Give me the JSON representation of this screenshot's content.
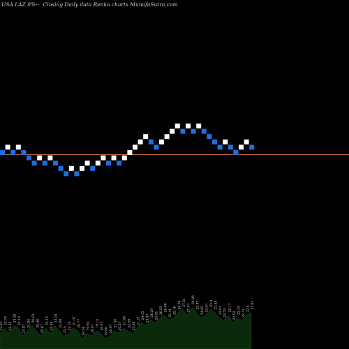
{
  "header": {
    "symbol": "USA LAZ 8%--",
    "caption": "Closing Daily data  Renko  charts MunafaSutra.com"
  },
  "colors": {
    "background": "#000000",
    "up_brick": "#ffffff",
    "down_brick": "#1e6fe0",
    "reference_line": "#c0622e",
    "volume_fill": "#0b2a0b",
    "label_text": "#d8d8d8"
  },
  "chart_data": {
    "type": "renko",
    "brick_size": 1,
    "y_units": "price steps relative to reference line",
    "reference_level": 0,
    "bricks": [
      {
        "level": 0,
        "dir": "down"
      },
      {
        "level": 1,
        "dir": "up"
      },
      {
        "level": 0,
        "dir": "down"
      },
      {
        "level": 1,
        "dir": "up"
      },
      {
        "level": 0,
        "dir": "down"
      },
      {
        "level": -1,
        "dir": "down"
      },
      {
        "level": -2,
        "dir": "down"
      },
      {
        "level": -1,
        "dir": "up"
      },
      {
        "level": -2,
        "dir": "down"
      },
      {
        "level": -1,
        "dir": "up"
      },
      {
        "level": -2,
        "dir": "down"
      },
      {
        "level": -3,
        "dir": "down"
      },
      {
        "level": -4,
        "dir": "down"
      },
      {
        "level": -3,
        "dir": "up"
      },
      {
        "level": -4,
        "dir": "down"
      },
      {
        "level": -3,
        "dir": "up"
      },
      {
        "level": -2,
        "dir": "up"
      },
      {
        "level": -3,
        "dir": "down"
      },
      {
        "level": -2,
        "dir": "up"
      },
      {
        "level": -1,
        "dir": "up"
      },
      {
        "level": -2,
        "dir": "down"
      },
      {
        "level": -1,
        "dir": "up"
      },
      {
        "level": -2,
        "dir": "down"
      },
      {
        "level": -1,
        "dir": "up"
      },
      {
        "level": 0,
        "dir": "up"
      },
      {
        "level": 1,
        "dir": "up"
      },
      {
        "level": 2,
        "dir": "up"
      },
      {
        "level": 3,
        "dir": "up"
      },
      {
        "level": 2,
        "dir": "down"
      },
      {
        "level": 1,
        "dir": "down"
      },
      {
        "level": 2,
        "dir": "up"
      },
      {
        "level": 3,
        "dir": "up"
      },
      {
        "level": 4,
        "dir": "up"
      },
      {
        "level": 5,
        "dir": "up"
      },
      {
        "level": 4,
        "dir": "down"
      },
      {
        "level": 5,
        "dir": "up"
      },
      {
        "level": 4,
        "dir": "down"
      },
      {
        "level": 5,
        "dir": "up"
      },
      {
        "level": 4,
        "dir": "down"
      },
      {
        "level": 3,
        "dir": "down"
      },
      {
        "level": 2,
        "dir": "down"
      },
      {
        "level": 1,
        "dir": "down"
      },
      {
        "level": 2,
        "dir": "up"
      },
      {
        "level": 1,
        "dir": "down"
      },
      {
        "level": 0,
        "dir": "down"
      },
      {
        "level": 1,
        "dir": "up"
      },
      {
        "level": 2,
        "dir": "up"
      },
      {
        "level": 1,
        "dir": "down"
      }
    ],
    "volume_labels": [
      "22.84",
      "23.79",
      "22.53",
      "23.39",
      "24.12",
      "23.87",
      "24.94",
      "26.02",
      "25.46",
      "25.67",
      "24.12",
      "25.06",
      "23.24",
      "22.69",
      "23.5",
      "22.19",
      "21.07",
      "20.77",
      "19.54",
      "19.94",
      "18.07",
      "19.14",
      "20.67",
      "19.88",
      "20.97",
      "21.48",
      "20.57",
      "21.88",
      "22.59",
      "23.08",
      "21.21",
      "24.15",
      "23.47",
      "24.29",
      "25.91",
      "26.55",
      "26.98",
      "25.41",
      "25.16",
      "26.76",
      "27.51",
      "27.01",
      "24.96",
      "25.87",
      "24.05",
      "24.01",
      "23.4",
      "22.45",
      "22.91",
      "23.79",
      "22.17",
      "22.52",
      "23.33",
      "22.51",
      "22.4",
      "23.62"
    ],
    "volume_values": [
      6,
      8,
      6,
      9,
      8,
      5,
      7,
      9,
      7,
      5,
      8,
      6,
      9,
      7,
      5,
      6,
      8,
      7,
      4,
      6,
      5,
      7,
      6,
      4,
      5,
      7,
      6,
      8,
      7,
      6,
      8,
      10,
      9,
      11,
      10,
      12,
      13,
      11,
      12,
      14,
      15,
      13,
      16,
      14,
      12,
      13,
      15,
      14,
      12,
      11,
      13,
      10,
      12,
      11,
      13,
      14
    ]
  }
}
